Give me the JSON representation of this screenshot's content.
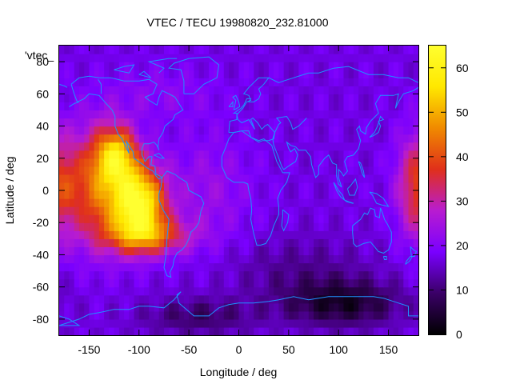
{
  "chart_data": {
    "type": "heatmap",
    "title": "VTEC / TECU 19980820_232.81000",
    "xlabel": "Longitude / deg",
    "ylabel": "Latitude / deg",
    "legend_key": "'vtec_",
    "xlim": [
      -180,
      180
    ],
    "ylim": [
      -90,
      90
    ],
    "x_ticks": [
      "-150",
      "-100",
      "-50",
      "0",
      "50",
      "100",
      "150"
    ],
    "x_tick_values": [
      -150,
      -100,
      -50,
      0,
      50,
      100,
      150
    ],
    "y_ticks": [
      "80",
      "60",
      "40",
      "20",
      "0",
      "-20",
      "-40",
      "-60",
      "-80"
    ],
    "y_tick_values": [
      80,
      60,
      40,
      20,
      0,
      -20,
      -40,
      -60,
      -80
    ],
    "colorbar": {
      "range": [
        0,
        65
      ],
      "ticks": [
        "60",
        "50",
        "40",
        "30",
        "20",
        "10",
        "0"
      ],
      "tick_values": [
        60,
        50,
        40,
        30,
        20,
        10,
        0
      ],
      "palette": [
        "#000000",
        "#3a0066",
        "#7a00ff",
        "#b81cd0",
        "#e0301a",
        "#f08a00",
        "#ffe800",
        "#ffff30"
      ]
    },
    "overlay": "coastlines",
    "overlay_color": "#1e90ff",
    "vtec_grid": {
      "grid_step_deg": 5,
      "background_tecu": 17,
      "features": [
        {
          "name": "equatorial-anomaly-south-america",
          "lon": -100,
          "lat": -8,
          "peak_tecu": 62
        },
        {
          "name": "equatorial-anomaly-pacific-west",
          "lon": -145,
          "lat": 5,
          "peak_tecu": 42
        },
        {
          "name": "northern-crest-america",
          "lon": -120,
          "lat": 25,
          "peak_tecu": 50
        },
        {
          "name": "equatorial-anomaly-east-pacific",
          "lon": 175,
          "lat": 5,
          "peak_tecu": 38
        },
        {
          "name": "south-pacific-band",
          "lon": -90,
          "lat": -28,
          "peak_tecu": 36
        },
        {
          "name": "antarctic-trough",
          "lon": 105,
          "lat": -70,
          "peak_tecu": 2
        }
      ]
    }
  }
}
